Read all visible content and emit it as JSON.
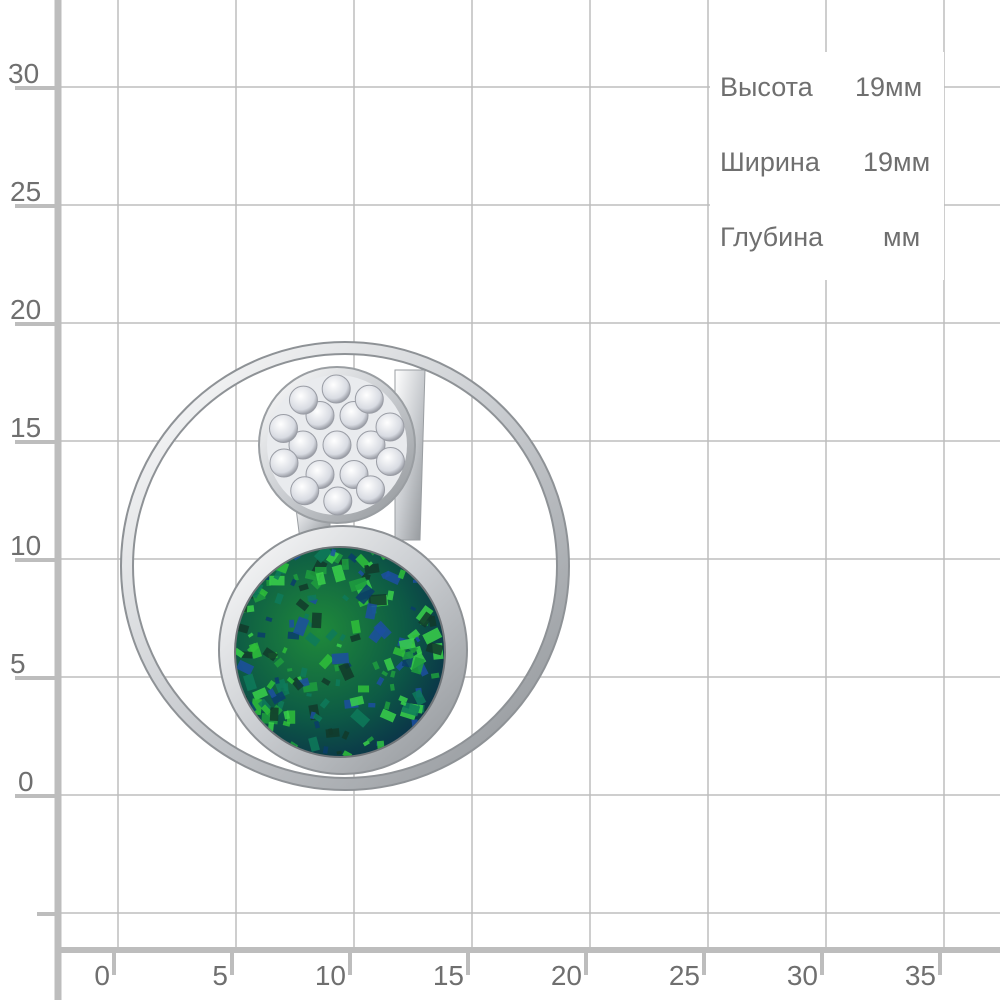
{
  "y_axis_labels": [
    "30",
    "25",
    "20",
    "15",
    "10",
    "5",
    "0"
  ],
  "x_axis_labels": [
    "0",
    "5",
    "10",
    "15",
    "20",
    "25",
    "30",
    "35"
  ],
  "specs": [
    {
      "label": "Высота",
      "value": "19мм"
    },
    {
      "label": "Ширина",
      "value": "19мм"
    },
    {
      "label": "Глубина",
      "value": "мм"
    }
  ],
  "colors": {
    "grid": "#bdbdbd",
    "axis": "#bdbdbd",
    "text": "#6f6f6f",
    "opal": "#0f6b4a",
    "metal": "#e6e8ea"
  },
  "image": {
    "subject": "pendant-with-opal-and-cubic-zirconia"
  }
}
